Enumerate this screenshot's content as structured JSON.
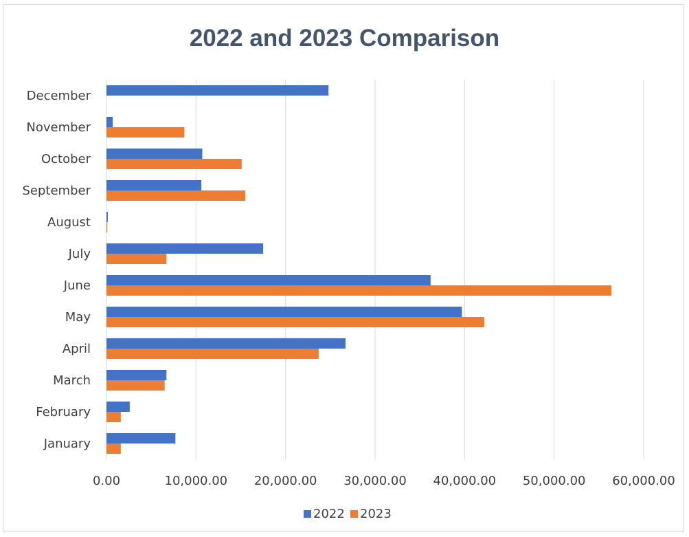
{
  "chart_data": {
    "type": "bar",
    "orientation": "horizontal",
    "title": "2022 and 2023 Comparison",
    "categories": [
      "January",
      "February",
      "March",
      "April",
      "May",
      "June",
      "July",
      "August",
      "September",
      "October",
      "November",
      "December"
    ],
    "series": [
      {
        "name": "2022",
        "color": "#4472c4",
        "values": [
          7700,
          2600,
          6700,
          26700,
          39700,
          36200,
          17500,
          150,
          10600,
          10700,
          700,
          24800
        ]
      },
      {
        "name": "2023",
        "color": "#ed7d31",
        "values": [
          1600,
          1600,
          6500,
          23700,
          42200,
          56400,
          6700,
          100,
          15500,
          15100,
          8700,
          0
        ]
      }
    ],
    "xlim": [
      0,
      60000
    ],
    "x_ticks": [
      "0.00",
      "10,000.00",
      "20,000.00",
      "30,000.00",
      "40,000.00",
      "50,000.00",
      "60,000.00"
    ],
    "x_tick_values": [
      0,
      10000,
      20000,
      30000,
      40000,
      50000,
      60000
    ],
    "xlabel": "",
    "ylabel": "",
    "grid": "vertical",
    "legend": "bottom"
  }
}
